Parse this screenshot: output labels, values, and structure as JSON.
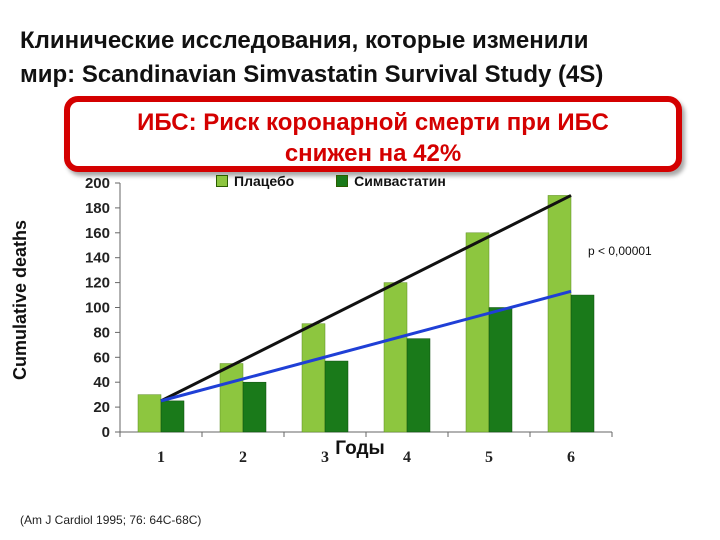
{
  "slide": {
    "title_line1": "Клинические исследования, которые изменили",
    "title_line2": "мир: Scandinavian Simvastatin Survival Study (4S)",
    "callout_line1": "ИБС: Риск коронарной смерти  при ИБС",
    "callout_line2": "снижен на 42%",
    "source": "(Am J Cardiol 1995; 76: 64C-68C)",
    "p_value": "p < 0,00001"
  },
  "chart_data": {
    "type": "bar",
    "categories": [
      "1",
      "2",
      "3",
      "4",
      "5",
      "6"
    ],
    "series": [
      {
        "name": "Плацебо",
        "values": [
          30,
          55,
          87,
          120,
          160,
          190
        ],
        "color": "#8dc63f"
      },
      {
        "name": "Симвастатин",
        "values": [
          25,
          40,
          57,
          75,
          100,
          110
        ],
        "color": "#1a7a1a"
      }
    ],
    "trend_lines": [
      {
        "series": "Плацебо",
        "from": 25,
        "to": 190,
        "color": "#111111"
      },
      {
        "series": "Симвастатин",
        "from": 25,
        "to": 113,
        "color": "#1f3fd6"
      }
    ],
    "xlabel": "Годы",
    "ylabel": "Cumulative deaths",
    "ylim": [
      0,
      200
    ],
    "yticks": [
      0,
      20,
      40,
      60,
      80,
      100,
      120,
      140,
      160,
      180,
      200
    ],
    "legend_position": "top"
  }
}
